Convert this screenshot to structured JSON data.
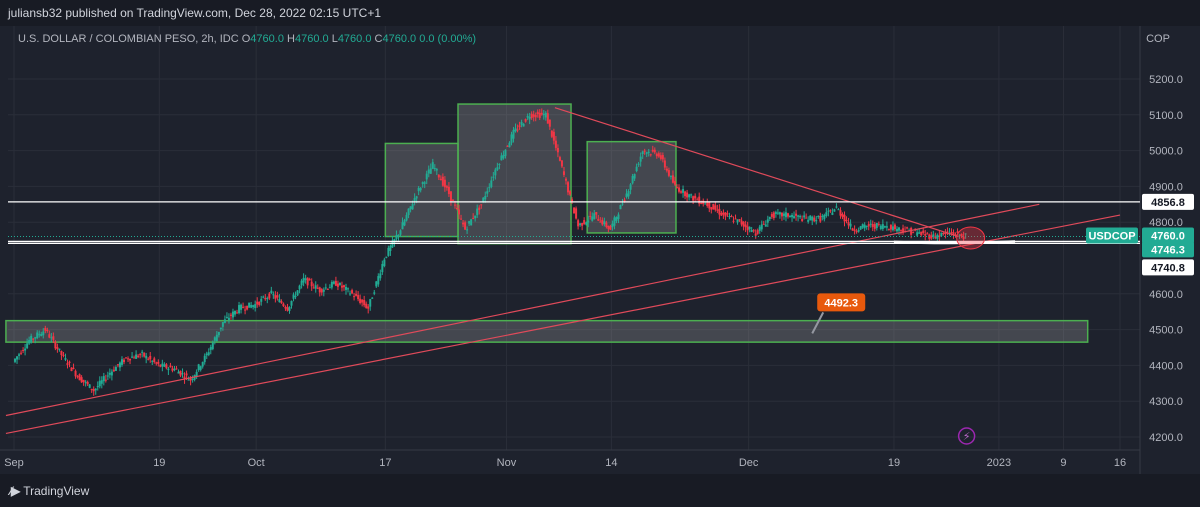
{
  "header": {
    "published": "juliansb32 published on TradingView.com, Dec 28, 2022 02:15 UTC+1"
  },
  "legend": {
    "symbol": "U.S. DOLLAR / COLOMBIAN PESO, 2h, IDC",
    "o_label": "O",
    "o": "4760.0",
    "h_label": "H",
    "h": "4760.0",
    "l_label": "L",
    "l": "4760.0",
    "c_label": "C",
    "c": "4760.0",
    "change": "0.0 (0.00%)"
  },
  "footer": {
    "brand": "TradingView"
  },
  "colors": {
    "background": "#1e222d",
    "up": "#22ab94",
    "down": "#f23645",
    "trendline": "#e04a5a",
    "box_border": "#4caf50",
    "callout": "#e8590c"
  },
  "chart_data": {
    "type": "candlestick",
    "currency": "COP",
    "ylim": [
      4150,
      5300
    ],
    "y_ticks": [
      {
        "label": "5200.0",
        "value": 5200
      },
      {
        "label": "5100.0",
        "value": 5100
      },
      {
        "label": "5000.0",
        "value": 5000
      },
      {
        "label": "4900.0",
        "value": 4900
      },
      {
        "label": "4800.0",
        "value": 4800
      },
      {
        "label": "4600.0",
        "value": 4600
      },
      {
        "label": "4500.0",
        "value": 4500
      },
      {
        "label": "4400.0",
        "value": 4400
      },
      {
        "label": "4300.0",
        "value": 4300
      },
      {
        "label": "4200.0",
        "value": 4200
      }
    ],
    "x_ticks": [
      {
        "label": "Sep",
        "day": 0
      },
      {
        "label": "19",
        "day": 18
      },
      {
        "label": "Oct",
        "day": 30
      },
      {
        "label": "17",
        "day": 46
      },
      {
        "label": "Nov",
        "day": 61
      },
      {
        "label": "14",
        "day": 74
      },
      {
        "label": "Dec",
        "day": 91
      },
      {
        "label": "19",
        "day": 109
      },
      {
        "label": "2023",
        "day": 122
      },
      {
        "label": "9",
        "day": 130
      },
      {
        "label": "16",
        "day": 137
      }
    ],
    "xlim_days": [
      -1,
      147
    ],
    "price_path": [
      [
        0,
        4410
      ],
      [
        2,
        4470
      ],
      [
        4,
        4500
      ],
      [
        6,
        4430
      ],
      [
        8,
        4370
      ],
      [
        10,
        4330
      ],
      [
        12,
        4380
      ],
      [
        14,
        4420
      ],
      [
        16,
        4430
      ],
      [
        18,
        4400
      ],
      [
        20,
        4390
      ],
      [
        22,
        4360
      ],
      [
        24,
        4430
      ],
      [
        26,
        4520
      ],
      [
        28,
        4560
      ],
      [
        30,
        4570
      ],
      [
        32,
        4600
      ],
      [
        34,
        4560
      ],
      [
        36,
        4640
      ],
      [
        38,
        4610
      ],
      [
        40,
        4630
      ],
      [
        42,
        4600
      ],
      [
        44,
        4560
      ],
      [
        46,
        4700
      ],
      [
        48,
        4780
      ],
      [
        50,
        4880
      ],
      [
        52,
        4960
      ],
      [
        54,
        4880
      ],
      [
        56,
        4780
      ],
      [
        58,
        4850
      ],
      [
        60,
        4960
      ],
      [
        62,
        5050
      ],
      [
        64,
        5100
      ],
      [
        66,
        5100
      ],
      [
        68,
        4950
      ],
      [
        70,
        4790
      ],
      [
        72,
        4820
      ],
      [
        74,
        4780
      ],
      [
        76,
        4880
      ],
      [
        78,
        5000
      ],
      [
        80,
        4990
      ],
      [
        82,
        4900
      ],
      [
        84,
        4870
      ],
      [
        86,
        4850
      ],
      [
        88,
        4820
      ],
      [
        90,
        4800
      ],
      [
        92,
        4770
      ],
      [
        94,
        4820
      ],
      [
        96,
        4820
      ],
      [
        98,
        4810
      ],
      [
        100,
        4810
      ],
      [
        102,
        4840
      ],
      [
        104,
        4780
      ],
      [
        106,
        4790
      ],
      [
        108,
        4790
      ],
      [
        110,
        4780
      ],
      [
        112,
        4770
      ],
      [
        114,
        4760
      ],
      [
        116,
        4770
      ],
      [
        118,
        4760
      ]
    ],
    "horizontal_levels": [
      {
        "value": 4856.8,
        "label": "4856.8"
      },
      {
        "value": 4746.3,
        "label": "4746.3"
      },
      {
        "value": 4740.8,
        "label": "4740.8"
      }
    ],
    "last_price": {
      "symbol": "USDCOP",
      "value": 4760.0,
      "label": "4760.0"
    },
    "callout": {
      "label": "4492.3",
      "value": 4492.3,
      "day": 99
    },
    "boxes": [
      {
        "d0": 46,
        "d1": 55,
        "p0": 4760,
        "p1": 5020
      },
      {
        "d0": 55,
        "d1": 69,
        "p0": 4740,
        "p1": 5130
      },
      {
        "d0": 71,
        "d1": 82,
        "p0": 4770,
        "p1": 5025
      },
      {
        "d0": -1,
        "d1": 133,
        "p0": 4465,
        "p1": 4525
      }
    ],
    "trendlines": [
      {
        "d0": 67,
        "p0": 5120,
        "d1": 117,
        "p1": 4760
      },
      {
        "d0": -1,
        "p0": 4260,
        "d1": 127,
        "p1": 4850
      },
      {
        "d0": -1,
        "p0": 4210,
        "d1": 137,
        "p1": 4820
      }
    ]
  }
}
